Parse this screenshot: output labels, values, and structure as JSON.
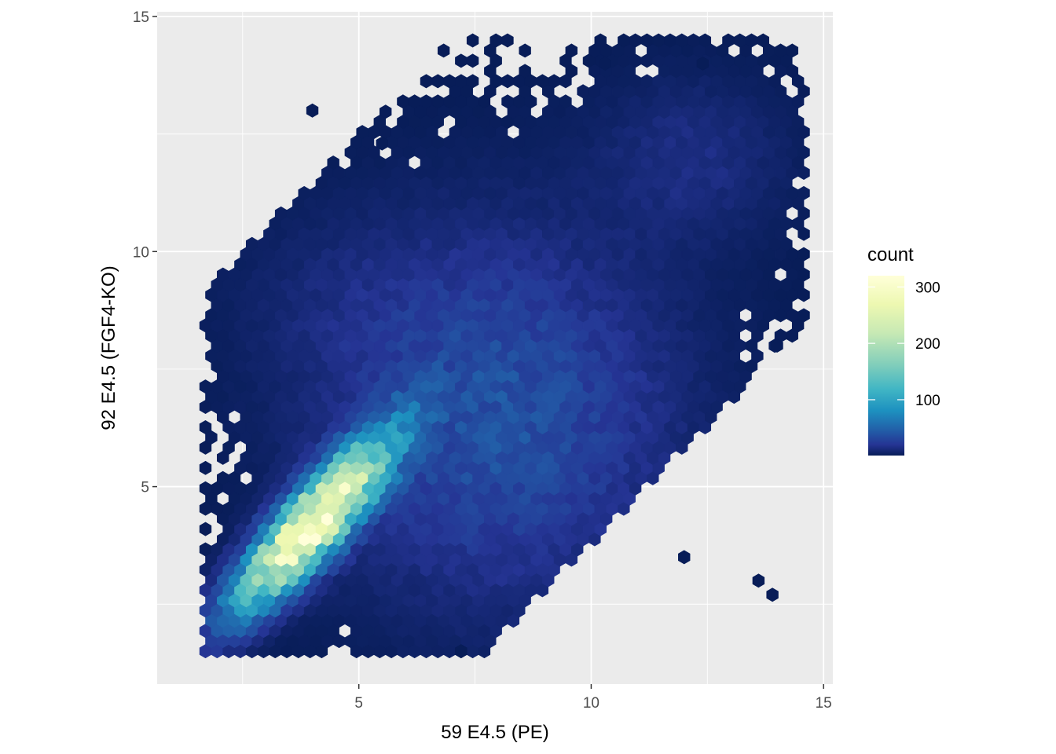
{
  "chart_data": {
    "type": "heatmap",
    "subtype": "hexbin",
    "title": "",
    "xlabel": "59 E4.5 (PE)",
    "ylabel": "92 E4.5 (FGF4-KO)",
    "xlim": [
      0.66,
      15.2
    ],
    "ylim": [
      0.8,
      15.1
    ],
    "x_ticks": [
      5,
      10,
      15
    ],
    "y_ticks": [
      5,
      10,
      15
    ],
    "x_tick_labels": [
      "5",
      "10",
      "15"
    ],
    "y_tick_labels": [
      "5",
      "10",
      "15"
    ],
    "grid": true,
    "panel_background": "#ebebeb",
    "gridline_color": "#ffffff",
    "legend": {
      "title": "count",
      "position": "right",
      "min": 1,
      "max": 320,
      "ticks": [
        100,
        200,
        300
      ],
      "tick_labels": [
        "100",
        "200",
        "300"
      ],
      "colors": [
        "#081d58",
        "#253494",
        "#225ea8",
        "#1d91c0",
        "#41b6c4",
        "#7fcdbb",
        "#c7e9b4",
        "#edf8b1",
        "#ffffd9"
      ]
    },
    "density_model": {
      "hex_spacing": 0.25,
      "components": [
        {
          "name": "diagonal ridge",
          "cx": 4.0,
          "cy": 4.2,
          "angle_deg": 48,
          "sd_major": 1.5,
          "sd_minor": 0.42,
          "peak": 310,
          "extent": [
            [
              1.9,
              1.9
            ],
            [
              6.5,
              7.0
            ]
          ]
        },
        {
          "name": "broad cloud",
          "cx": 8.0,
          "cy": 6.5,
          "sd_x": 2.5,
          "sd_y": 2.6,
          "peak": 38
        },
        {
          "name": "upper-right tail",
          "cx": 12.2,
          "cy": 12.0,
          "sd_x": 1.4,
          "sd_y": 1.2,
          "peak": 14
        },
        {
          "name": "upper-left band",
          "cx": 4.5,
          "cy": 9.0,
          "sd_x": 1.7,
          "sd_y": 1.3,
          "peak": 6
        }
      ],
      "sparse_outliers": [
        [
          4.0,
          13.0
        ],
        [
          5.5,
          12.3
        ],
        [
          7.2,
          1.5
        ],
        [
          13.9,
          2.7
        ],
        [
          14.0,
          8.0
        ],
        [
          12.0,
          3.5
        ],
        [
          12.4,
          14.0
        ],
        [
          10.3,
          14.0
        ],
        [
          13.6,
          3.0
        ]
      ]
    }
  }
}
